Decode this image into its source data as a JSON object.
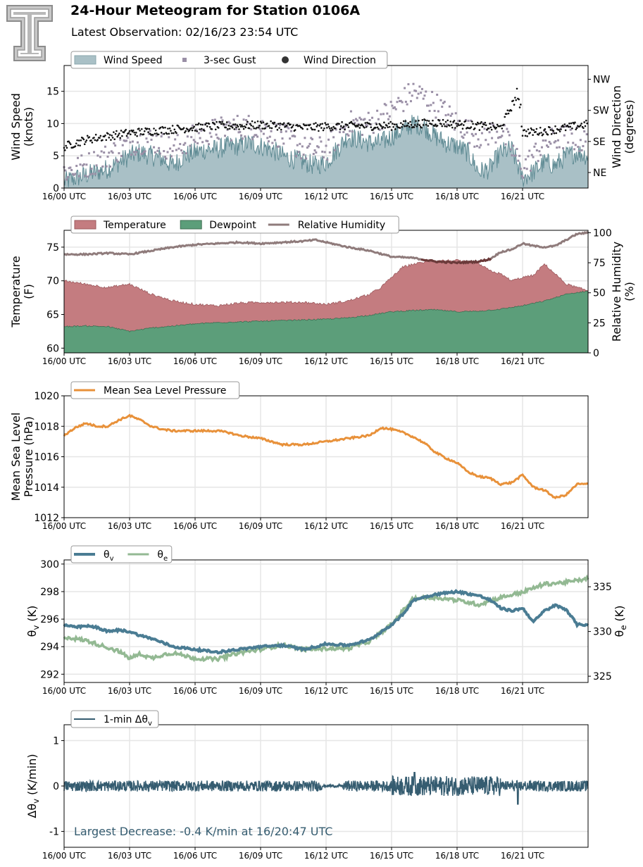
{
  "header": {
    "title": "24-Hour Meteogram for Station 0106A",
    "subtitle": "Latest Observation: 02/16/23 23:54 UTC"
  },
  "colors": {
    "wind_speed": "#a9c0c6",
    "wind_speed_line": "#5e8a93",
    "gust": "#9a8fa6",
    "direction": "#111111",
    "temperature": "#c47c80",
    "dewpoint": "#5c9e7a",
    "rh": "#8f7b7b",
    "pressure": "#e8913a",
    "theta_v": "#4a7c93",
    "theta_e": "#93b993",
    "dtheta": "#355c70",
    "annotation": "#355c70"
  },
  "chart_data": [
    {
      "type": "area",
      "id": "wind",
      "ylabel": "Wind Speed\n(knots)",
      "y2label": "Wind Direction\n(degrees)",
      "ylim": [
        0,
        19
      ],
      "yticks": [
        0,
        5,
        10,
        15
      ],
      "y2ticks": [
        "NE",
        "SE",
        "SW",
        "NW"
      ],
      "y2tick_values": [
        45,
        135,
        225,
        315
      ],
      "y2lim": [
        0,
        355
      ],
      "xticks": [
        "16/00 UTC",
        "16/03 UTC",
        "16/06 UTC",
        "16/09 UTC",
        "16/12 UTC",
        "16/15 UTC",
        "16/18 UTC",
        "16/21 UTC"
      ],
      "xlim_hours": [
        0,
        24
      ],
      "legend": [
        "Wind Speed",
        "3-sec Gust",
        "Wind Direction"
      ],
      "legend_position": "top-left",
      "grid": true,
      "series": [
        {
          "name": "Wind Speed",
          "x": [
            0,
            0.5,
            1,
            1.5,
            2,
            2.5,
            3,
            3.5,
            4,
            4.5,
            5,
            5.5,
            6,
            6.5,
            7,
            7.5,
            8,
            8.5,
            9,
            9.5,
            10,
            10.5,
            11,
            11.5,
            12,
            12.5,
            13,
            13.5,
            14,
            14.5,
            15,
            15.5,
            16,
            16.5,
            17,
            17.5,
            18,
            18.5,
            19,
            19.5,
            20,
            20.5,
            21,
            21.5,
            22,
            22.5,
            23,
            23.5,
            24
          ],
          "y": [
            1,
            1.5,
            2,
            2.5,
            3,
            4,
            5,
            5.5,
            5,
            4.5,
            3.5,
            5,
            5.5,
            6,
            6,
            6.5,
            6.5,
            7,
            6.5,
            6,
            5,
            4.5,
            4,
            3.5,
            4,
            6,
            8,
            7.5,
            7,
            7,
            8,
            9,
            10,
            9.5,
            8,
            7,
            6.5,
            5.5,
            2.5,
            3,
            5.5,
            6,
            1.5,
            2.5,
            4,
            3.5,
            5,
            5.5,
            5
          ]
        },
        {
          "name": "3-sec Gust",
          "x": [
            0,
            1,
            2,
            3,
            4,
            5,
            6,
            7,
            8,
            9,
            10,
            11,
            12,
            13,
            14,
            15,
            16,
            17,
            18,
            19,
            20,
            21,
            22,
            23,
            24
          ],
          "y": [
            2.5,
            3.5,
            5,
            7,
            7.5,
            6,
            8,
            9,
            9.5,
            9.5,
            8,
            6,
            6,
            10,
            10,
            12,
            15,
            13,
            10,
            8,
            9,
            3,
            7,
            8,
            7
          ]
        },
        {
          "name": "Wind Direction",
          "x": [
            0,
            1,
            2,
            3,
            4,
            5,
            6,
            7,
            8,
            9,
            10,
            11,
            12,
            13,
            14,
            15,
            16,
            17,
            18,
            19,
            20,
            20.8,
            21,
            22,
            23,
            24
          ],
          "y": [
            120,
            140,
            150,
            160,
            165,
            170,
            175,
            180,
            180,
            183,
            180,
            175,
            178,
            180,
            180,
            180,
            185,
            190,
            185,
            180,
            175,
            275,
            160,
            165,
            175,
            185
          ]
        }
      ]
    },
    {
      "type": "area",
      "id": "temp",
      "ylabel": "Temperature\n(F)",
      "y2label": "Relative Humidity\n(%)",
      "ylim": [
        59.3,
        77.5
      ],
      "yticks": [
        60,
        65,
        70,
        75
      ],
      "y2lim": [
        0,
        102
      ],
      "y2ticks": [
        0,
        25,
        50,
        75,
        100
      ],
      "xticks": [
        "16/00 UTC",
        "16/03 UTC",
        "16/06 UTC",
        "16/09 UTC",
        "16/12 UTC",
        "16/15 UTC",
        "16/18 UTC",
        "16/21 UTC"
      ],
      "xlim_hours": [
        0,
        24
      ],
      "legend": [
        "Temperature",
        "Dewpoint",
        "Relative Humidity"
      ],
      "legend_position": "top-left",
      "grid": true,
      "series": [
        {
          "name": "Temperature",
          "x": [
            0,
            1,
            2,
            3,
            4,
            5,
            6,
            7,
            8,
            9,
            10,
            11,
            12,
            13,
            14,
            14.5,
            15,
            15.5,
            16,
            17,
            18,
            19,
            19.5,
            20,
            20.5,
            21,
            21.5,
            22,
            22.5,
            23,
            23.5,
            24
          ],
          "y": [
            70,
            69.5,
            69,
            69.5,
            68,
            67,
            66.5,
            66.3,
            66.7,
            66.8,
            66.8,
            66.8,
            66.5,
            67,
            68,
            69,
            70.5,
            72,
            72.5,
            73,
            73,
            72.5,
            71.5,
            71,
            70,
            70.5,
            70.8,
            72.5,
            71,
            69.5,
            69,
            68.5
          ]
        },
        {
          "name": "Dewpoint",
          "x": [
            0,
            1,
            2,
            3,
            4,
            5,
            6,
            7,
            8,
            9,
            10,
            11,
            12,
            13,
            14,
            15,
            16,
            17,
            18,
            19,
            20,
            21,
            22,
            23,
            24
          ],
          "y": [
            63.2,
            63.3,
            63.2,
            62.5,
            63,
            63.3,
            63.6,
            63.8,
            63.9,
            64,
            64.1,
            64.2,
            64.3,
            64.5,
            64.9,
            65.4,
            65.6,
            65.7,
            65.4,
            65.5,
            65.8,
            66.3,
            67,
            68,
            68.5
          ]
        },
        {
          "name": "Relative Humidity",
          "x": [
            0,
            1,
            2,
            3,
            4,
            5,
            6,
            7,
            8,
            9,
            10,
            11,
            11.5,
            12,
            13,
            14,
            15,
            16,
            17,
            18,
            19,
            19.5,
            20,
            20.5,
            21,
            21.5,
            22,
            22.5,
            23,
            23.5,
            24
          ],
          "y": [
            82,
            82,
            83,
            82,
            85,
            88,
            90,
            91,
            92,
            91,
            92,
            93,
            94,
            92,
            88,
            85,
            80,
            79,
            76,
            75,
            76,
            78,
            84,
            86,
            91,
            89,
            88,
            89,
            94,
            99,
            100
          ]
        }
      ]
    },
    {
      "type": "line",
      "id": "pressure",
      "ylabel": "Mean Sea Level\nPressure (hPa)",
      "ylim": [
        1012,
        1020
      ],
      "yticks": [
        1012,
        1014,
        1016,
        1018,
        1020
      ],
      "xticks": [
        "16/00 UTC",
        "16/03 UTC",
        "16/06 UTC",
        "16/09 UTC",
        "16/12 UTC",
        "16/15 UTC",
        "16/18 UTC",
        "16/21 UTC"
      ],
      "xlim_hours": [
        0,
        24
      ],
      "legend": [
        "Mean Sea Level Pressure"
      ],
      "legend_position": "top-left",
      "grid": true,
      "series": [
        {
          "name": "Mean Sea Level Pressure",
          "x": [
            0,
            0.5,
            1,
            1.5,
            2,
            2.5,
            3,
            3.5,
            4,
            4.5,
            5,
            6,
            7,
            7.5,
            8,
            9,
            10,
            11,
            12,
            13,
            14,
            14.5,
            15,
            15.5,
            16,
            16.5,
            17,
            17.5,
            18,
            18.5,
            19,
            19.5,
            20,
            20.5,
            21,
            21.5,
            22,
            22.5,
            23,
            23.5,
            24
          ],
          "y": [
            1017.4,
            1017.9,
            1018.2,
            1018.0,
            1018.0,
            1018.4,
            1018.7,
            1018.4,
            1018.0,
            1017.8,
            1017.7,
            1017.7,
            1017.7,
            1017.6,
            1017.4,
            1017.2,
            1016.8,
            1016.8,
            1017.0,
            1017.2,
            1017.4,
            1017.9,
            1017.8,
            1017.6,
            1017.3,
            1016.9,
            1016.3,
            1015.9,
            1015.6,
            1015.0,
            1014.7,
            1014.6,
            1014.2,
            1014.3,
            1014.8,
            1014.0,
            1013.8,
            1013.3,
            1013.5,
            1014.2,
            1014.2
          ]
        }
      ]
    },
    {
      "type": "line",
      "id": "theta",
      "ylabel": "θv (K)",
      "y2label": "θe (K)",
      "ylim": [
        291.4,
        300.3
      ],
      "yticks": [
        292,
        294,
        296,
        298,
        300
      ],
      "y2lim": [
        324.3,
        338.0
      ],
      "y2ticks": [
        325,
        330,
        335
      ],
      "xticks": [
        "16/00 UTC",
        "16/03 UTC",
        "16/06 UTC",
        "16/09 UTC",
        "16/12 UTC",
        "16/15 UTC",
        "16/18 UTC",
        "16/21 UTC"
      ],
      "xlim_hours": [
        0,
        24
      ],
      "legend": [
        "θv",
        "θe"
      ],
      "legend_position": "top-left",
      "grid": true,
      "series": [
        {
          "name": "θv",
          "x": [
            0,
            0.5,
            1,
            1.5,
            2,
            2.5,
            3,
            3.5,
            4,
            4.5,
            5,
            6,
            7,
            8,
            9,
            10,
            11,
            11.5,
            12,
            13,
            14,
            15,
            15.5,
            16,
            17,
            18,
            19,
            19.5,
            20,
            20.5,
            21,
            21.5,
            22,
            22.5,
            23,
            23.5,
            24
          ],
          "y": [
            295.6,
            295.4,
            295.5,
            295.4,
            295.1,
            295.2,
            295.1,
            294.8,
            294.6,
            294.3,
            294.0,
            293.8,
            293.6,
            293.8,
            294.0,
            294.1,
            293.8,
            294.0,
            294.2,
            294.1,
            294.5,
            295.6,
            296.3,
            297.4,
            297.8,
            298.0,
            297.7,
            297.4,
            296.8,
            296.6,
            296.8,
            295.8,
            296.6,
            297.0,
            296.7,
            295.6,
            295.6
          ]
        },
        {
          "name": "θe",
          "x": [
            0,
            0.5,
            1,
            1.5,
            2,
            2.5,
            3,
            3.5,
            4,
            4.5,
            5,
            6,
            7,
            8,
            9,
            10,
            11,
            12,
            13,
            14,
            15,
            16,
            17,
            18,
            19,
            20,
            21,
            22,
            23,
            24
          ],
          "y": [
            329.4,
            329.2,
            329.0,
            328.6,
            328.2,
            327.8,
            327.0,
            327.5,
            327.0,
            327.4,
            327.6,
            327.0,
            326.9,
            327.6,
            328.0,
            328.5,
            328.0,
            328.1,
            328.1,
            328.9,
            330.8,
            333.7,
            333.8,
            333.5,
            333.0,
            333.8,
            334.4,
            335.3,
            335.5,
            335.9
          ]
        }
      ]
    },
    {
      "type": "line",
      "id": "dtheta",
      "ylabel": "Δθv (K/min)",
      "ylim": [
        -1.35,
        1.35
      ],
      "yticks": [
        -1,
        0,
        1
      ],
      "xticks": [
        "16/00 UTC",
        "16/03 UTC",
        "16/06 UTC",
        "16/09 UTC",
        "16/12 UTC",
        "16/15 UTC",
        "16/18 UTC",
        "16/21 UTC"
      ],
      "xlim_hours": [
        0,
        24
      ],
      "legend": [
        "1-min Δθv"
      ],
      "legend_position": "top-left",
      "grid": true,
      "annotation": "Largest Decrease: -0.4 K/min at 16/20:47 UTC",
      "series": [
        {
          "name": "1-min Δθv",
          "x": [
            0,
            2,
            4,
            6,
            8,
            10,
            12,
            14,
            15.5,
            16,
            17,
            18,
            19,
            20.78,
            22,
            24
          ],
          "y": [
            0,
            0.1,
            -0.1,
            0.1,
            -0.1,
            0.1,
            0,
            0.1,
            0.2,
            0.3,
            -0.2,
            0.2,
            -0.1,
            -0.4,
            0.1,
            0
          ]
        }
      ]
    }
  ]
}
